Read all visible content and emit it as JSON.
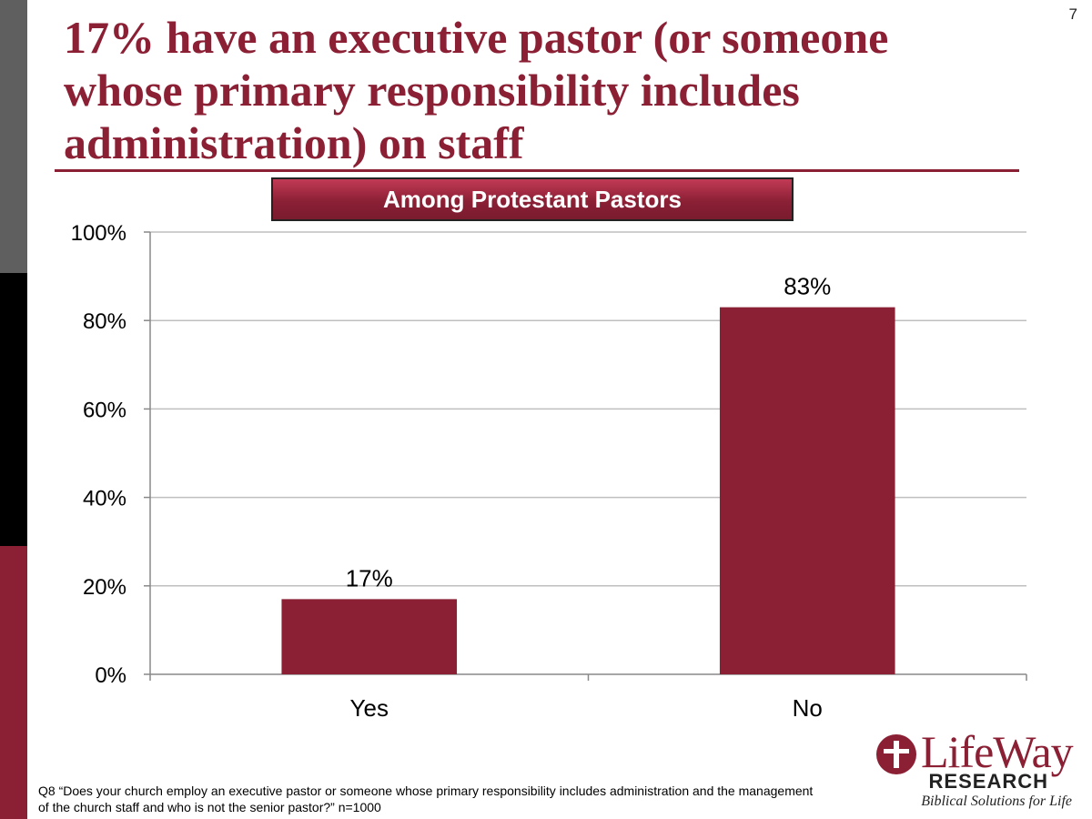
{
  "slide": {
    "page_number": "7",
    "title": "17% have an executive pastor (or someone whose primary responsibility includes administration) on staff",
    "subtitle": "Among Protestant Pastors",
    "footnote": "Q8 “Does your church employ an executive pastor or someone whose primary responsibility includes administration and the management of the church staff and who is not the senior pastor?” n=1000"
  },
  "logo": {
    "name": "LifeWay",
    "research": "RESEARCH",
    "tagline": "Biblical Solutions for Life"
  },
  "colors": {
    "accent": "#8b2035",
    "grid": "#bfbfbf"
  },
  "chart_data": {
    "type": "bar",
    "categories": [
      "Yes",
      "No"
    ],
    "values": [
      17,
      83
    ],
    "data_labels": [
      "17%",
      "83%"
    ],
    "ylim": [
      0,
      100
    ],
    "y_ticks": [
      0,
      20,
      40,
      60,
      80,
      100
    ],
    "y_tick_labels": [
      "0%",
      "20%",
      "40%",
      "60%",
      "80%",
      "100%"
    ],
    "grid": true,
    "legend": "none"
  }
}
